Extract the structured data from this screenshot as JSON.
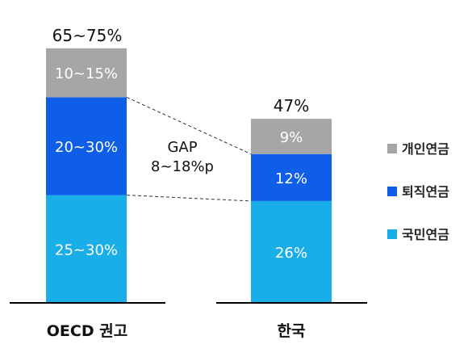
{
  "chart_data": {
    "type": "bar",
    "stacked": true,
    "categories": [
      "OECD 권고",
      "한국"
    ],
    "totals": [
      "65~75%",
      "47%"
    ],
    "series": [
      {
        "name": "국민연금",
        "color": "#1aaee8",
        "labels": [
          "25~30%",
          "26%"
        ],
        "values": [
          27.5,
          26
        ]
      },
      {
        "name": "퇴직연금",
        "color": "#0f5ee8",
        "labels": [
          "20~30%",
          "12%"
        ],
        "values": [
          25,
          12
        ]
      },
      {
        "name": "개인연금",
        "color": "#a6a6a6",
        "labels": [
          "10~15%",
          "9%"
        ],
        "values": [
          12.5,
          9
        ]
      }
    ],
    "legend_order": [
      "개인연금",
      "퇴직연금",
      "국민연금"
    ],
    "legend_position": "right",
    "annotation": {
      "line1": "GAP",
      "line2": "8~18%p"
    },
    "ylim": [
      0,
      70
    ],
    "grid": false
  }
}
